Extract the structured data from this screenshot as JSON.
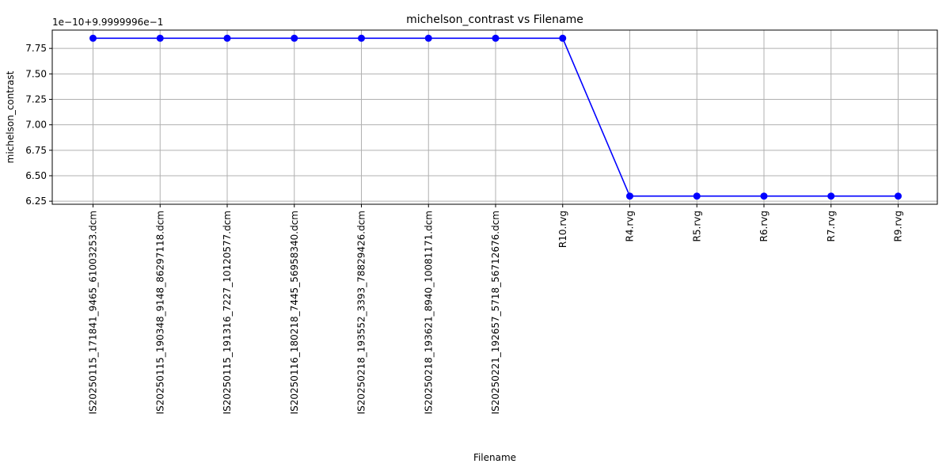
{
  "chart_data": {
    "type": "line",
    "title": "michelson_contrast vs Filename",
    "xlabel": "Filename",
    "ylabel": "michelson_contrast",
    "offset_label": "1e−10+9.9999996e−1",
    "categories": [
      "IS20250115_171841_9465_61003253.dcm",
      "IS20250115_190348_9148_86297118.dcm",
      "IS20250115_191316_7227_10120577.dcm",
      "IS20250116_180218_7445_56958340.dcm",
      "IS20250218_193552_3393_78829426.dcm",
      "IS20250218_193621_8940_10081171.dcm",
      "IS20250221_192657_5718_56712676.dcm",
      "R10.rvg",
      "R4.rvg",
      "R5.rvg",
      "R6.rvg",
      "R7.rvg",
      "R9.rvg"
    ],
    "values": [
      7.85,
      7.85,
      7.85,
      7.85,
      7.85,
      7.85,
      7.85,
      7.85,
      6.3,
      6.3,
      6.3,
      6.3,
      6.3
    ],
    "y_ticks": [
      "6.25",
      "6.50",
      "6.75",
      "7.00",
      "7.25",
      "7.50",
      "7.75"
    ],
    "ylim": [
      6.22,
      7.93
    ],
    "grid": true,
    "line_color": "#0000ff",
    "marker_color": "#0000ff",
    "grid_color": "#b0b0b0"
  }
}
